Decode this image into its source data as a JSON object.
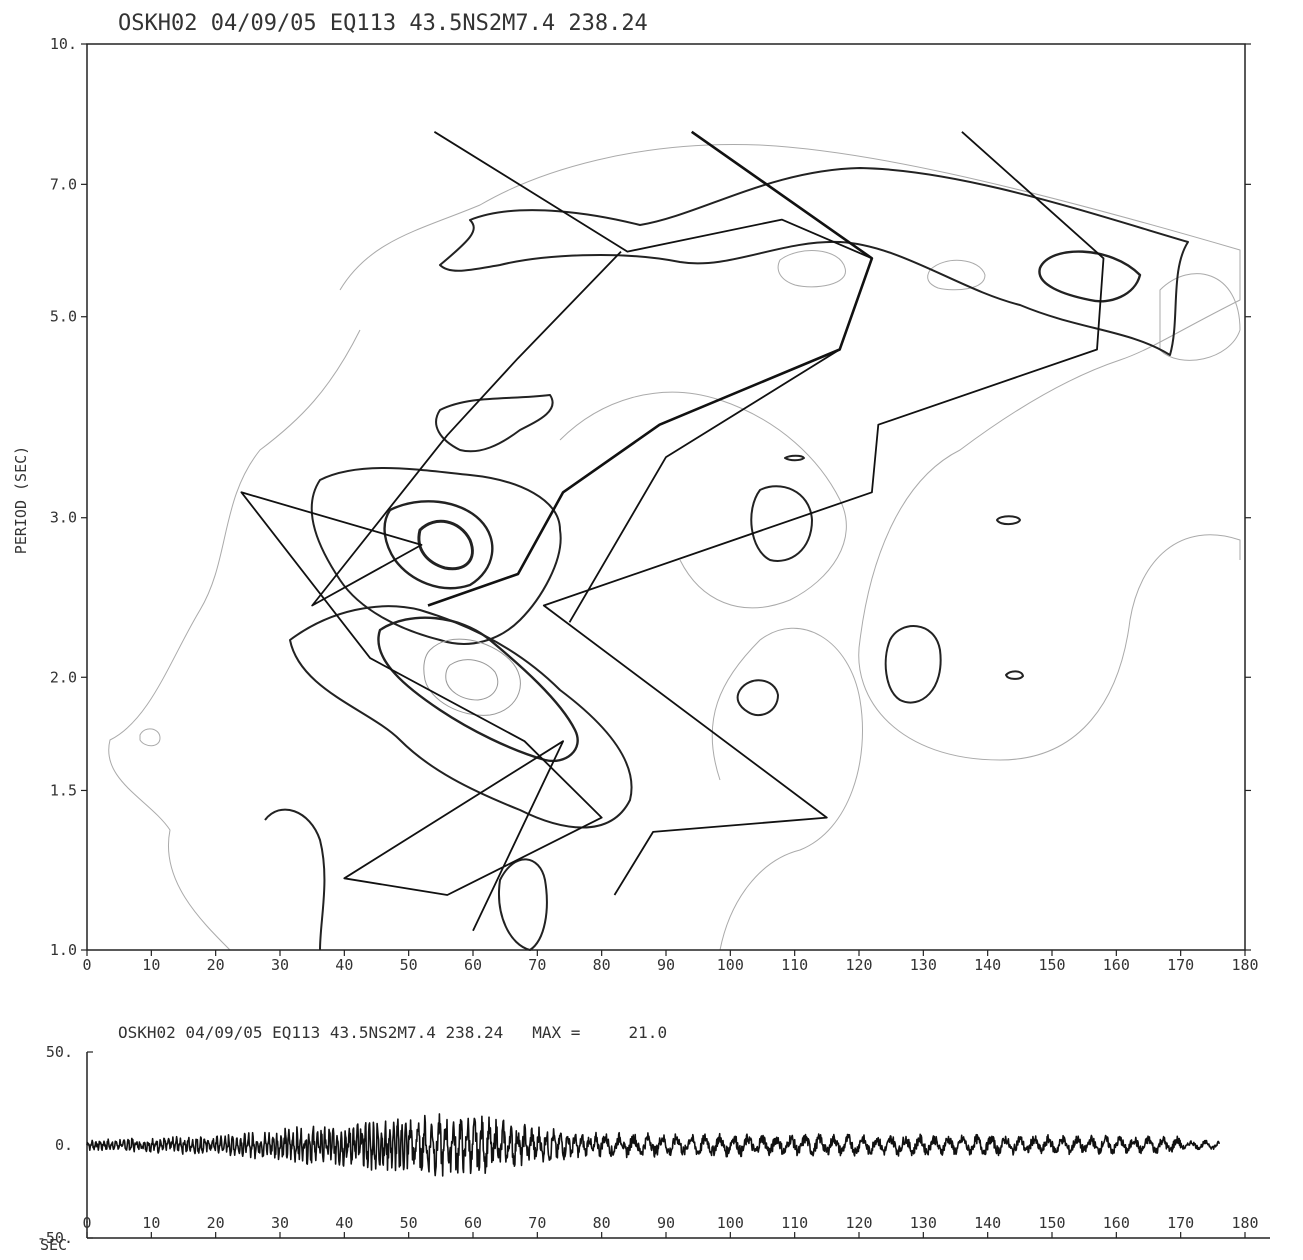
{
  "chart_data": [
    {
      "type": "contour",
      "title": "OSKH02 04/09/05 EQ113 43.5NS2M7.4 238.24",
      "xlabel": "",
      "ylabel": "PERIOD (SEC)",
      "xlim": [
        0,
        180
      ],
      "ylim": [
        1.0,
        10.0
      ],
      "yscale": "log",
      "x_ticks": [
        "0",
        "10",
        "20",
        "30",
        "40",
        "50",
        "60",
        "70",
        "80",
        "90",
        "100",
        "110",
        "120",
        "130",
        "140",
        "150",
        "160",
        "170",
        "180"
      ],
      "y_ticks": [
        {
          "label": "10.",
          "value": 10.0
        },
        {
          "label": "7.0",
          "value": 7.0
        },
        {
          "label": "5.0",
          "value": 5.0
        },
        {
          "label": "3.0",
          "value": 3.0
        },
        {
          "label": "2.0",
          "value": 2.0
        },
        {
          "label": "1.5",
          "value": 1.5
        },
        {
          "label": "1.0",
          "value": 1.0
        }
      ],
      "series": [
        {
          "x": [
            54,
            84,
            108,
            122,
            117,
            90,
            75
          ],
          "y": [
            8.0,
            5.9,
            6.4,
            5.8,
            4.6,
            3.5,
            2.3
          ]
        },
        {
          "x": [
            94,
            122,
            117,
            89,
            74,
            67,
            53
          ],
          "y": [
            8.0,
            5.8,
            4.6,
            3.8,
            3.2,
            2.6,
            2.4
          ]
        },
        {
          "x": [
            136,
            158,
            157,
            123,
            122,
            71,
            115,
            88,
            82
          ],
          "y": [
            8.0,
            5.8,
            4.6,
            3.8,
            3.2,
            2.4,
            1.4,
            1.35,
            1.15
          ]
        },
        {
          "x": [
            83,
            67,
            56,
            35,
            52,
            24,
            44,
            68,
            80,
            56,
            40,
            74,
            60
          ],
          "y": [
            5.9,
            4.5,
            3.7,
            2.4,
            2.8,
            3.2,
            2.1,
            1.7,
            1.4,
            1.15,
            1.2,
            1.7,
            1.05
          ]
        }
      ]
    },
    {
      "type": "line",
      "title": "OSKH02 04/09/05 EQ113 43.5NS2M7.4 238.24   MAX =     21.0",
      "xlabel": "SEC",
      "ylabel": "",
      "xlim": [
        0,
        180
      ],
      "ylim": [
        -50,
        50
      ],
      "x_ticks": [
        "0",
        "10",
        "20",
        "30",
        "40",
        "50",
        "60",
        "70",
        "80",
        "90",
        "100",
        "110",
        "120",
        "130",
        "140",
        "150",
        "160",
        "170",
        "180"
      ],
      "y_ticks": [
        {
          "label": "50.",
          "value": 50
        },
        {
          "label": "0.",
          "value": 0
        },
        {
          "label": "-50.",
          "value": -50
        }
      ],
      "max": 21.0,
      "duration": 176
    }
  ]
}
